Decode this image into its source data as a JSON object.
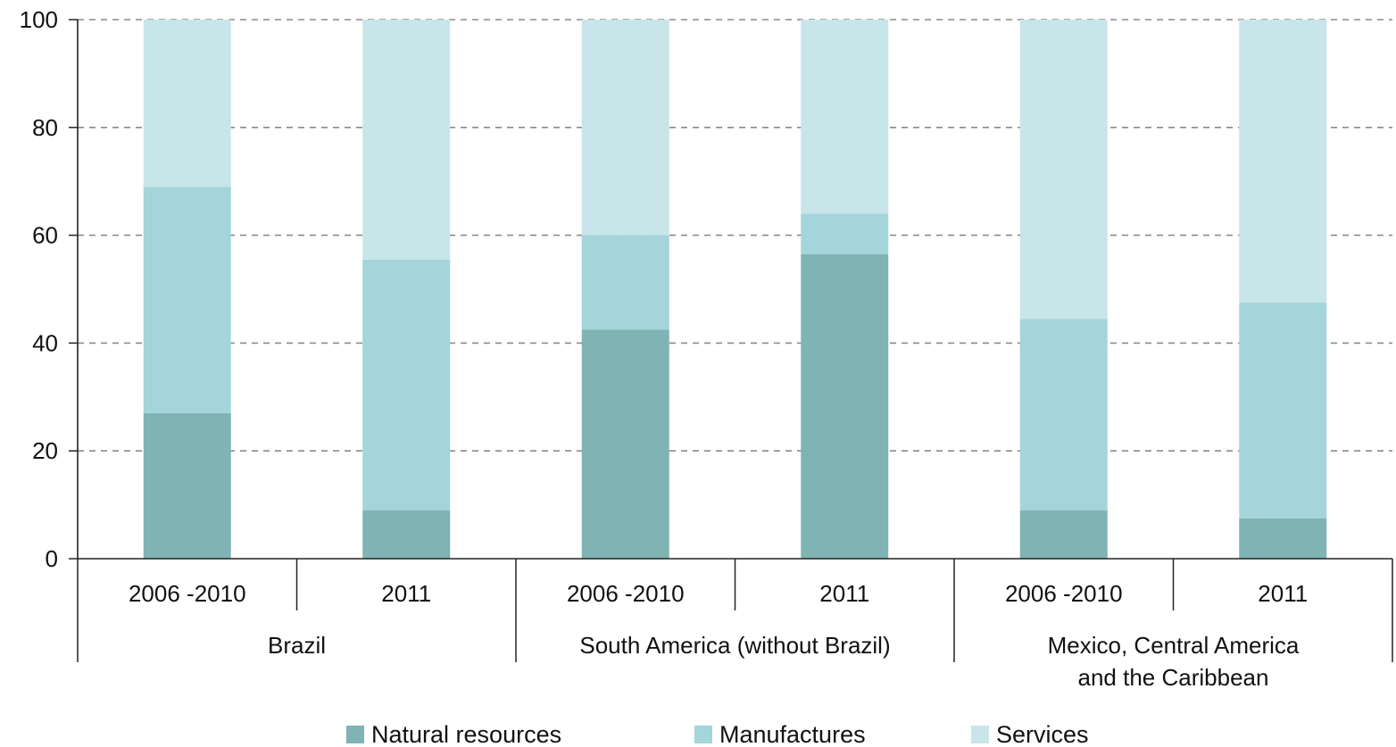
{
  "chart_data": {
    "type": "bar",
    "stacked": true,
    "title": "",
    "xlabel": "",
    "ylabel": "",
    "ylim": [
      0,
      100
    ],
    "yticks": [
      0,
      20,
      40,
      60,
      80,
      100
    ],
    "grid": "horizontal dashed",
    "groups": [
      {
        "label_lines": [
          "Brazil"
        ],
        "categories": [
          "2006 -2010",
          "2011"
        ]
      },
      {
        "label_lines": [
          "South America (without Brazil)"
        ],
        "categories": [
          "2006 -2010",
          "2011"
        ]
      },
      {
        "label_lines": [
          "Mexico, Central America",
          "and the Caribbean"
        ],
        "categories": [
          "2006 -2010",
          "2011"
        ]
      }
    ],
    "series": [
      {
        "name": "Natural resources",
        "color": "#7fb3b4",
        "values": [
          27,
          9,
          42.5,
          56.5,
          9,
          7.5
        ]
      },
      {
        "name": "Manufactures",
        "color": "#a3d5da",
        "values": [
          42,
          46.5,
          17.5,
          7.5,
          35.5,
          40
        ]
      },
      {
        "name": "Services",
        "color": "#c8e5e9",
        "values": [
          31,
          44.5,
          40,
          36,
          55.5,
          52.5
        ]
      }
    ],
    "legend_position": "bottom"
  }
}
